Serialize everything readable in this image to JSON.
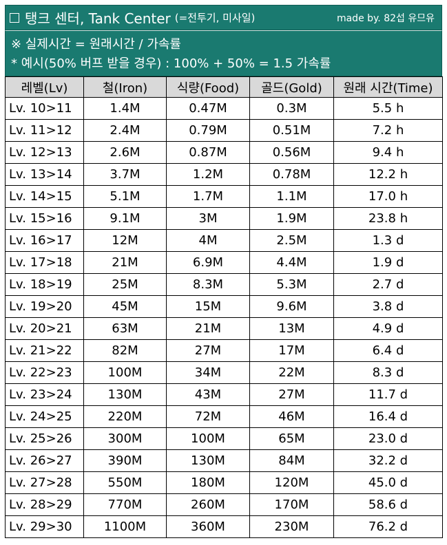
{
  "header": {
    "title": "탱크 센터, Tank Center",
    "subtitle": "(=전투기, 미사일)",
    "credit": "made by. 82섭 유므유"
  },
  "notes": [
    "※ 실제시간 = 원래시간 / 가속률",
    "* 예시(50% 버프 받을 경우) : 100% + 50% = 1.5 가속률"
  ],
  "table": {
    "columns": [
      "레벨(Lv)",
      "철(Iron)",
      "식량(Food)",
      "골드(Gold)",
      "원래 시간(Time)"
    ],
    "rows": [
      [
        "Lv. 10>11",
        "1.4M",
        "0.47M",
        "0.3M",
        "5.5 h"
      ],
      [
        "Lv. 11>12",
        "2.4M",
        "0.79M",
        "0.51M",
        "7.2 h"
      ],
      [
        "Lv. 12>13",
        "2.6M",
        "0.87M",
        "0.56M",
        "9.4 h"
      ],
      [
        "Lv. 13>14",
        "3.7M",
        "1.2M",
        "0.78M",
        "12.2 h"
      ],
      [
        "Lv. 14>15",
        "5.1M",
        "1.7M",
        "1.1M",
        "17.0 h"
      ],
      [
        "Lv. 15>16",
        "9.1M",
        "3M",
        "1.9M",
        "23.8 h"
      ],
      [
        "Lv. 16>17",
        "12M",
        "4M",
        "2.5M",
        "1.3 d"
      ],
      [
        "Lv. 17>18",
        "21M",
        "6.9M",
        "4.4M",
        "1.9 d"
      ],
      [
        "Lv. 18>19",
        "25M",
        "8.3M",
        "5.3M",
        "2.7 d"
      ],
      [
        "Lv. 19>20",
        "45M",
        "15M",
        "9.6M",
        "3.8 d"
      ],
      [
        "Lv. 20>21",
        "63M",
        "21M",
        "13M",
        "4.9 d"
      ],
      [
        "Lv. 21>22",
        "82M",
        "27M",
        "17M",
        "6.4 d"
      ],
      [
        "Lv. 22>23",
        "100M",
        "34M",
        "22M",
        "8.3 d"
      ],
      [
        "Lv. 23>24",
        "130M",
        "43M",
        "27M",
        "11.7 d"
      ],
      [
        "Lv. 24>25",
        "220M",
        "72M",
        "46M",
        "16.4 d"
      ],
      [
        "Lv. 25>26",
        "300M",
        "100M",
        "65M",
        "23.0 d"
      ],
      [
        "Lv. 26>27",
        "390M",
        "130M",
        "84M",
        "32.2 d"
      ],
      [
        "Lv. 27>28",
        "550M",
        "180M",
        "120M",
        "45.0 d"
      ],
      [
        "Lv. 28>29",
        "770M",
        "260M",
        "170M",
        "58.6 d"
      ],
      [
        "Lv. 29>30",
        "1100M",
        "360M",
        "230M",
        "76.2 d"
      ]
    ]
  },
  "colors": {
    "header_bg": "#1a7a70",
    "column_header_bg": "#d9d9d9"
  }
}
